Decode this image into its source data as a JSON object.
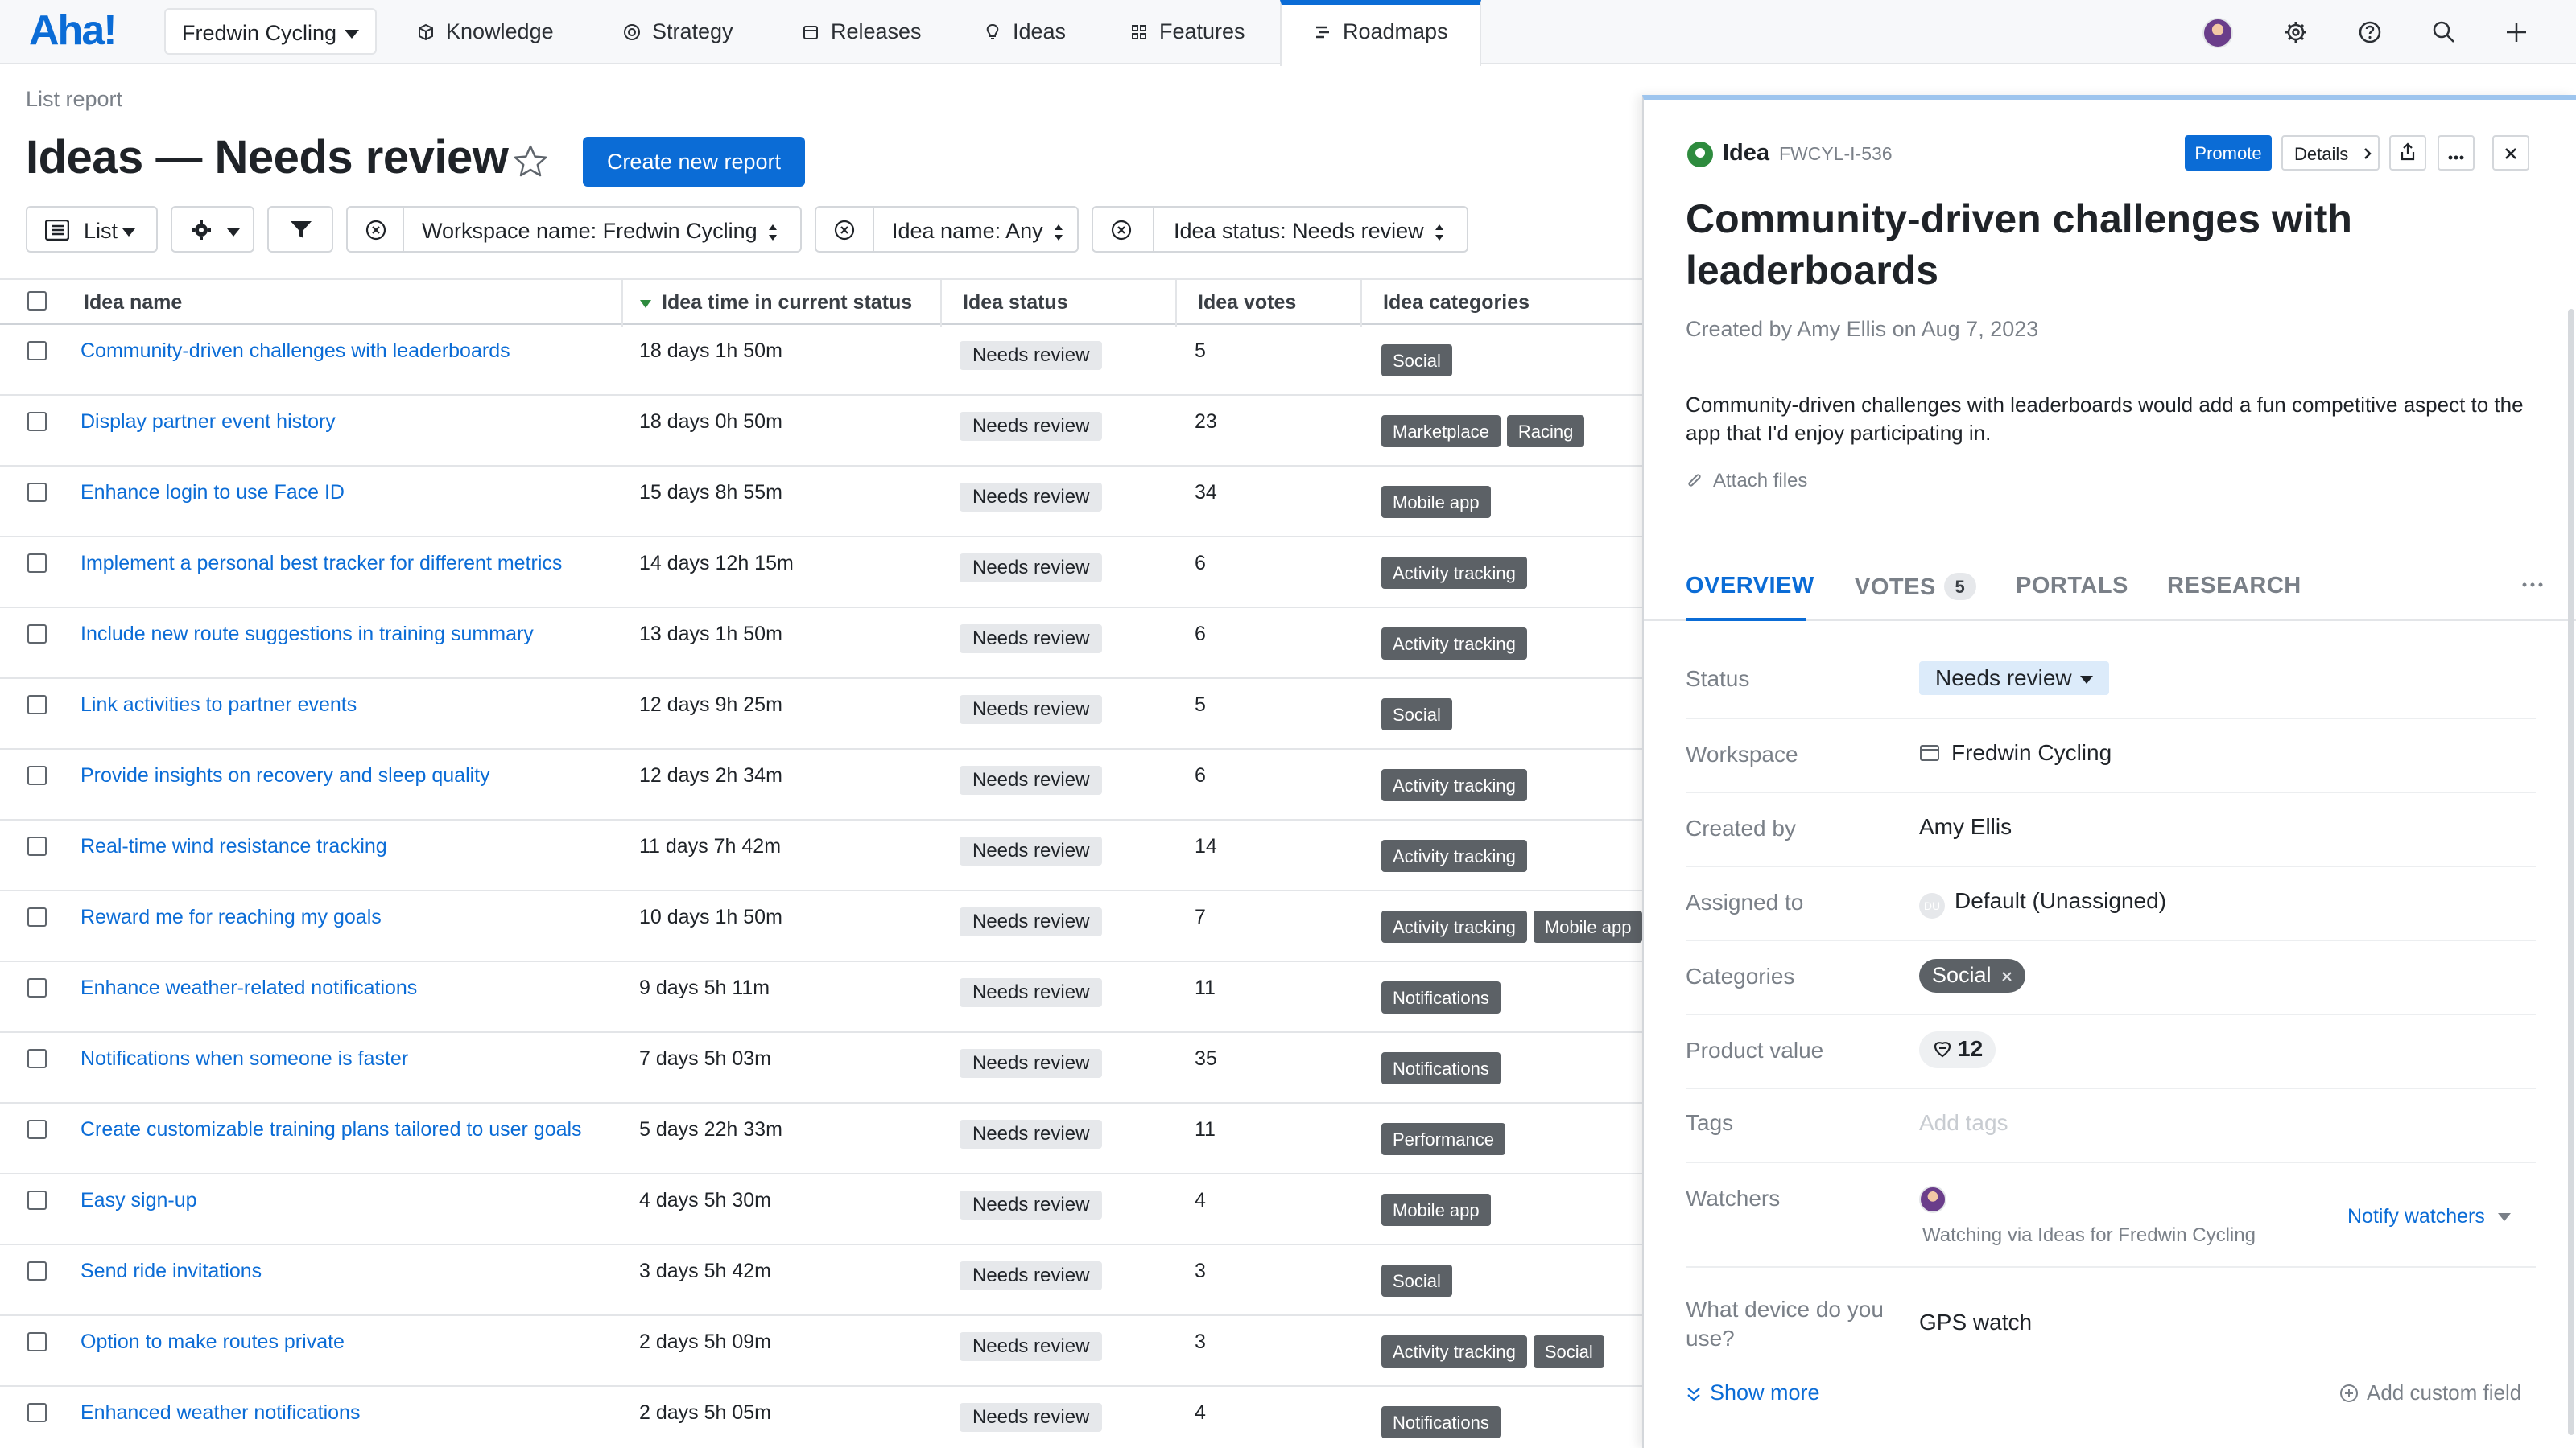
{
  "app": {
    "logo": "Aha!",
    "workspace": "Fredwin Cycling"
  },
  "nav": {
    "tabs": [
      {
        "label": "Knowledge",
        "icon": "cube-icon"
      },
      {
        "label": "Strategy",
        "icon": "target-icon"
      },
      {
        "label": "Releases",
        "icon": "calendar-icon"
      },
      {
        "label": "Ideas",
        "icon": "lightbulb-icon"
      },
      {
        "label": "Features",
        "icon": "grid-icon"
      },
      {
        "label": "Roadmaps",
        "icon": "roadmap-icon",
        "active": true
      }
    ],
    "right_icons": [
      "user-avatar",
      "gear-icon",
      "help-icon",
      "search-icon",
      "plus-icon"
    ]
  },
  "report": {
    "breadcrumb": "List report",
    "title": "Ideas — Needs review",
    "create_label": "Create new report"
  },
  "toolbar": {
    "view_label": "List",
    "filters": [
      {
        "label": "Workspace name: Fredwin Cycling"
      },
      {
        "label": "Idea name: Any"
      },
      {
        "label": "Idea status: Needs review"
      }
    ]
  },
  "table": {
    "columns": [
      "Idea name",
      "Idea time in current status",
      "Idea status",
      "Idea votes",
      "Idea categories"
    ],
    "sort_column": "Idea time in current status",
    "rows": [
      {
        "name": "Community-driven challenges with leaderboards",
        "time": "18 days 1h 50m",
        "status": "Needs review",
        "votes": "5",
        "categories": [
          "Social"
        ]
      },
      {
        "name": "Display partner event history",
        "time": "18 days 0h 50m",
        "status": "Needs review",
        "votes": "23",
        "categories": [
          "Marketplace",
          "Racing"
        ]
      },
      {
        "name": "Enhance login to use Face ID",
        "time": "15 days 8h 55m",
        "status": "Needs review",
        "votes": "34",
        "categories": [
          "Mobile app"
        ]
      },
      {
        "name": "Implement a personal best tracker for different metrics",
        "time": "14 days 12h 15m",
        "status": "Needs review",
        "votes": "6",
        "categories": [
          "Activity tracking"
        ]
      },
      {
        "name": "Include new route suggestions in training summary",
        "time": "13 days 1h 50m",
        "status": "Needs review",
        "votes": "6",
        "categories": [
          "Activity tracking"
        ]
      },
      {
        "name": "Link activities to partner events",
        "time": "12 days 9h 25m",
        "status": "Needs review",
        "votes": "5",
        "categories": [
          "Social"
        ]
      },
      {
        "name": "Provide insights on recovery and sleep quality",
        "time": "12 days 2h 34m",
        "status": "Needs review",
        "votes": "6",
        "categories": [
          "Activity tracking"
        ]
      },
      {
        "name": "Real-time wind resistance tracking",
        "time": "11 days 7h 42m",
        "status": "Needs review",
        "votes": "14",
        "categories": [
          "Activity tracking"
        ]
      },
      {
        "name": "Reward me for reaching my goals",
        "time": "10 days 1h 50m",
        "status": "Needs review",
        "votes": "7",
        "categories": [
          "Activity tracking",
          "Mobile app"
        ]
      },
      {
        "name": "Enhance weather-related notifications",
        "time": "9 days 5h 11m",
        "status": "Needs review",
        "votes": "11",
        "categories": [
          "Notifications"
        ]
      },
      {
        "name": "Notifications when someone is faster",
        "time": "7 days 5h 03m",
        "status": "Needs review",
        "votes": "35",
        "categories": [
          "Notifications"
        ]
      },
      {
        "name": "Create customizable training plans tailored to user goals",
        "time": "5 days 22h 33m",
        "status": "Needs review",
        "votes": "11",
        "categories": [
          "Performance"
        ]
      },
      {
        "name": "Easy sign-up",
        "time": "4 days 5h 30m",
        "status": "Needs review",
        "votes": "4",
        "categories": [
          "Mobile app"
        ]
      },
      {
        "name": "Send ride invitations",
        "time": "3 days 5h 42m",
        "status": "Needs review",
        "votes": "3",
        "categories": [
          "Social"
        ]
      },
      {
        "name": "Option to make routes private",
        "time": "2 days 5h 09m",
        "status": "Needs review",
        "votes": "3",
        "categories": [
          "Activity tracking",
          "Social"
        ]
      },
      {
        "name": "Enhanced weather notifications",
        "time": "2 days 5h 05m",
        "status": "Needs review",
        "votes": "4",
        "categories": [
          "Notifications"
        ]
      }
    ]
  },
  "panel": {
    "type_label": "Idea",
    "id": "FWCYL-I-536",
    "promote_label": "Promote",
    "details_label": "Details",
    "title": "Community-driven challenges with leaderboards",
    "created": "Created by Amy Ellis on Aug 7, 2023",
    "description": "Community-driven challenges with leaderboards would add a fun competitive aspect to the app that I'd enjoy participating in.",
    "attach_label": "Attach files",
    "tabs": [
      {
        "label": "OVERVIEW",
        "active": true
      },
      {
        "label": "VOTES",
        "count": "5"
      },
      {
        "label": "PORTALS"
      },
      {
        "label": "RESEARCH"
      }
    ],
    "fields": {
      "status": {
        "label": "Status",
        "value": "Needs review"
      },
      "workspace": {
        "label": "Workspace",
        "value": "Fredwin Cycling"
      },
      "created_by": {
        "label": "Created by",
        "value": "Amy Ellis"
      },
      "assigned_to": {
        "label": "Assigned to",
        "value": "Default (Unassigned)",
        "avatar_initials": "DU"
      },
      "categories": {
        "label": "Categories",
        "value": "Social"
      },
      "product_value": {
        "label": "Product value",
        "value": "12"
      },
      "tags": {
        "label": "Tags",
        "placeholder": "Add tags"
      },
      "watchers": {
        "label": "Watchers",
        "note": "Watching via Ideas for Fredwin Cycling",
        "notify_label": "Notify watchers"
      },
      "device": {
        "label": "What device do you use?",
        "value": "GPS watch"
      }
    },
    "show_more_label": "Show more",
    "add_custom_label": "Add custom field"
  },
  "colors": {
    "accent": "#0b6cd6",
    "category_bg": "#5c6166",
    "status_bg": "#e6e8eb",
    "status_pill_bg": "#dcebfa"
  }
}
